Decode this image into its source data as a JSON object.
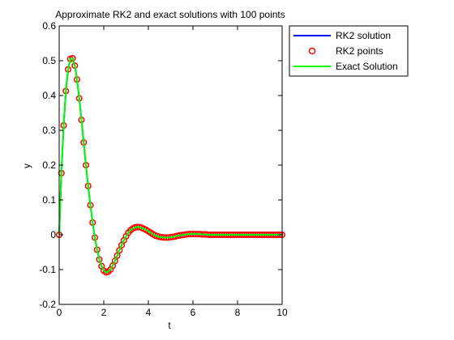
{
  "chart_data": {
    "type": "line",
    "title": "Approximate RK2 and exact solutions with 100 points",
    "xlabel": "t",
    "ylabel": "y",
    "xlim": [
      0,
      10
    ],
    "ylim": [
      -0.2,
      0.6
    ],
    "xticks": [
      0,
      2,
      4,
      6,
      8,
      10
    ],
    "xtick_labels": [
      "0",
      "2",
      "4",
      "6",
      "8",
      "10"
    ],
    "yticks": [
      -0.2,
      -0.1,
      0,
      0.1,
      0.2,
      0.3,
      0.4,
      0.5,
      0.6
    ],
    "ytick_labels": [
      "-0.2",
      "-0.1",
      "0",
      "0.1",
      "0.2",
      "0.3",
      "0.4",
      "0.5",
      "0.6"
    ],
    "grid": false,
    "legend_position": "top-right, outside plot area",
    "series": [
      {
        "name": "RK2 solution",
        "style": "line",
        "color": "#0000ff"
      },
      {
        "name": "RK2 points",
        "style": "circle-markers",
        "color": "#ff0000"
      },
      {
        "name": "Exact Solution",
        "style": "line",
        "color": "#00ff00"
      }
    ],
    "x": [
      0,
      0.1,
      0.2,
      0.3,
      0.4,
      0.5,
      0.6,
      0.7,
      0.8,
      0.9,
      1.0,
      1.1,
      1.2,
      1.3,
      1.4,
      1.5,
      1.6,
      1.7,
      1.8,
      1.9,
      2.0,
      2.1,
      2.2,
      2.3,
      2.4,
      2.5,
      2.6,
      2.7,
      2.8,
      2.9,
      3.0,
      3.1,
      3.2,
      3.3,
      3.4,
      3.5,
      3.6,
      3.7,
      3.8,
      3.9,
      4.0,
      4.1,
      4.2,
      4.3,
      4.4,
      4.5,
      4.6,
      4.7,
      4.8,
      4.9,
      5.0,
      5.1,
      5.2,
      5.3,
      5.4,
      5.5,
      5.6,
      5.7,
      5.8,
      5.9,
      6.0,
      6.1,
      6.2,
      6.3,
      6.4,
      6.5,
      6.6,
      6.7,
      6.8,
      6.9,
      7.0,
      7.1,
      7.2,
      7.3,
      7.4,
      7.5,
      7.6,
      7.7,
      7.8,
      7.9,
      8.0,
      8.1,
      8.2,
      8.3,
      8.4,
      8.5,
      8.6,
      8.7,
      8.8,
      8.9,
      9.0,
      9.1,
      9.2,
      9.3,
      9.4,
      9.5,
      9.6,
      9.7,
      9.8,
      9.9,
      10.0
    ],
    "y": [
      0,
      0.177,
      0.314,
      0.413,
      0.475,
      0.505,
      0.507,
      0.486,
      0.446,
      0.392,
      0.33,
      0.265,
      0.2,
      0.14,
      0.085,
      0.035,
      -0.008,
      -0.043,
      -0.071,
      -0.09,
      -0.103,
      -0.108,
      -0.106,
      -0.1,
      -0.089,
      -0.075,
      -0.06,
      -0.045,
      -0.03,
      -0.016,
      -0.004,
      0.006,
      0.013,
      0.018,
      0.021,
      0.022,
      0.022,
      0.02,
      0.017,
      0.014,
      0.01,
      0.006,
      0.002,
      -0.002,
      -0.004,
      -0.006,
      -0.007,
      -0.008,
      -0.008,
      -0.008,
      -0.007,
      -0.006,
      -0.005,
      -0.003,
      -0.002,
      -0.001,
      0.0,
      0.001,
      0.002,
      0.002,
      0.002,
      0.002,
      0.002,
      0.002,
      0.001,
      0.001,
      0.001,
      0.0,
      0.0,
      0.0,
      0.0,
      0.0,
      0.0,
      0.0,
      0.0,
      0.0,
      0.0,
      0.0,
      0.0,
      0.0,
      0.0,
      0.0,
      0.0,
      0.0,
      0.0,
      0.0,
      0.0,
      0.0,
      0.0,
      0.0,
      0.0,
      0.0,
      0.0,
      0.0,
      0.0,
      0.0,
      0.0,
      0.0,
      0.0,
      0.0,
      0.0
    ]
  }
}
